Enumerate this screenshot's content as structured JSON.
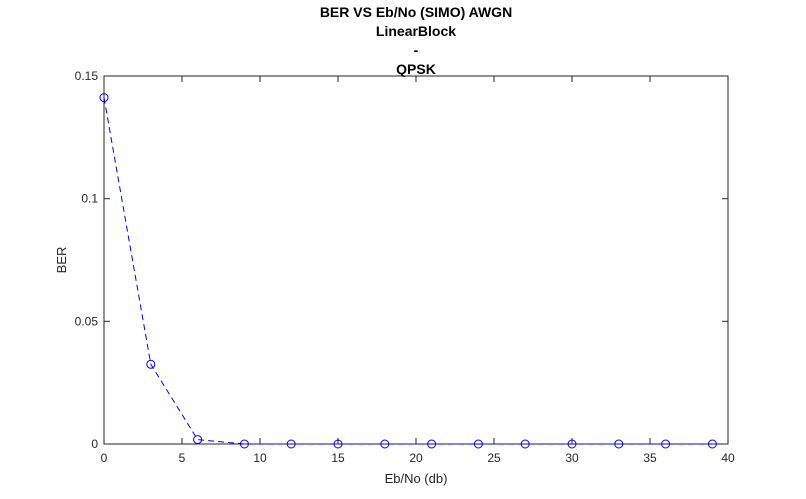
{
  "chart_data": {
    "type": "line",
    "title": [
      "BER VS Eb/No (SIMO) AWGN",
      "LinearBlock",
      "-",
      "QPSK"
    ],
    "xlabel": "Eb/No (db)",
    "ylabel": "BER",
    "xlim": [
      0,
      40
    ],
    "ylim": [
      0,
      0.15
    ],
    "xticks": [
      0,
      5,
      10,
      15,
      20,
      25,
      30,
      35,
      40
    ],
    "xtick_labels": [
      "0",
      "5",
      "10",
      "15",
      "20",
      "25",
      "30",
      "35",
      "40"
    ],
    "yticks": [
      0,
      0.05,
      0.1,
      0.15
    ],
    "ytick_labels": [
      "0",
      "0.05",
      "0.1",
      "0.15"
    ],
    "grid": false,
    "series": [
      {
        "x": [
          0,
          3,
          6,
          9,
          12,
          15,
          18,
          21,
          24,
          27,
          30,
          33,
          36,
          39
        ],
        "y": [
          0.1412,
          0.0325,
          0.0018,
          0,
          0,
          0,
          0,
          0,
          0,
          0,
          0,
          0,
          0,
          0
        ],
        "color": "#0000ff",
        "line_style": "dashed",
        "marker": "circle"
      }
    ]
  }
}
